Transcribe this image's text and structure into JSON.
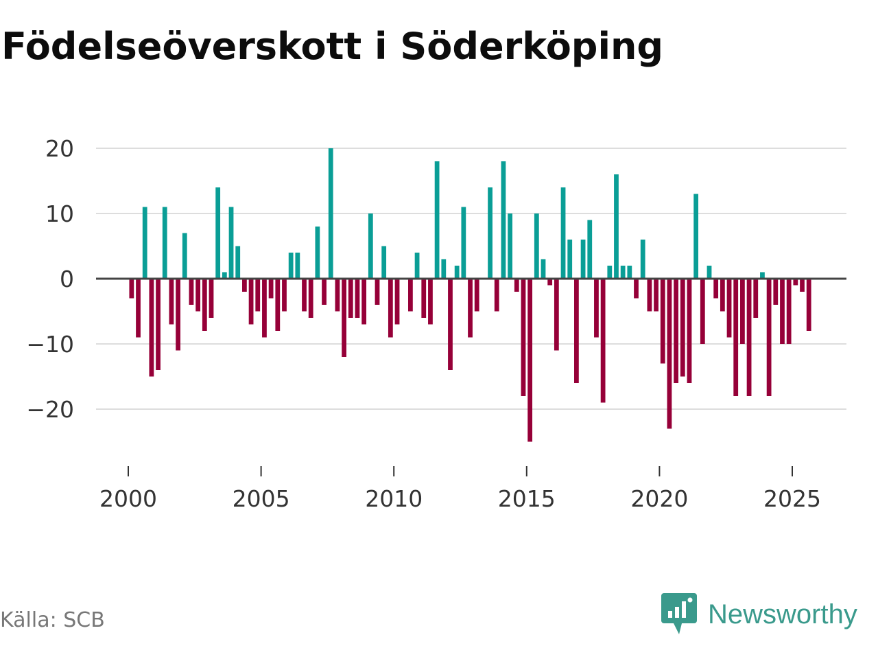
{
  "title": "Födelseöverskott i Söderköping",
  "source": "Källa: SCB",
  "brand": {
    "name": "Newsworthy",
    "icon": "newsworthy-logo-icon"
  },
  "colors": {
    "positive": "#0a9e96",
    "negative": "#960038",
    "grid": "#dddddd",
    "zero": "#444444",
    "brand": "#3a9a8c"
  },
  "chart_data": {
    "type": "bar",
    "title": "Födelseöverskott i Söderköping",
    "xlabel": "",
    "ylabel": "",
    "frequency": "quarterly",
    "start": 2000.0,
    "x_ticks": [
      2000,
      2005,
      2010,
      2015,
      2020,
      2025
    ],
    "x_tick_labels": [
      "2000",
      "2005",
      "2010",
      "2015",
      "2020",
      "2025"
    ],
    "y_ticks": [
      -20,
      -10,
      0,
      10,
      20
    ],
    "y_tick_labels": [
      "−20",
      "−10",
      "0",
      "10",
      "20"
    ],
    "ylim": [
      -28,
      22
    ],
    "xlim": [
      1999.1,
      2027.0
    ],
    "grid": true,
    "values": [
      -3,
      -9,
      11,
      -15,
      -14,
      11,
      -7,
      -11,
      7,
      -4,
      -5,
      -8,
      -6,
      14,
      1,
      11,
      5,
      -2,
      -7,
      -5,
      -9,
      -3,
      -8,
      -5,
      4,
      4,
      -5,
      -6,
      8,
      -4,
      20,
      -5,
      -12,
      -6,
      -6,
      -7,
      10,
      -4,
      5,
      -9,
      -7,
      0,
      -5,
      4,
      -6,
      -7,
      18,
      3,
      -14,
      2,
      11,
      -9,
      -5,
      0,
      14,
      -5,
      18,
      10,
      -2,
      -18,
      -25,
      10,
      3,
      -1,
      -11,
      14,
      6,
      -16,
      6,
      9,
      -9,
      -19,
      2,
      16,
      2,
      2,
      -3,
      6,
      -5,
      -5,
      -13,
      -23,
      -16,
      -15,
      -16,
      13,
      -10,
      2,
      -3,
      -5,
      -9,
      -18,
      -10,
      -18,
      -6,
      1,
      -18,
      -4,
      -10,
      -10,
      -1,
      -2,
      -8
    ]
  }
}
